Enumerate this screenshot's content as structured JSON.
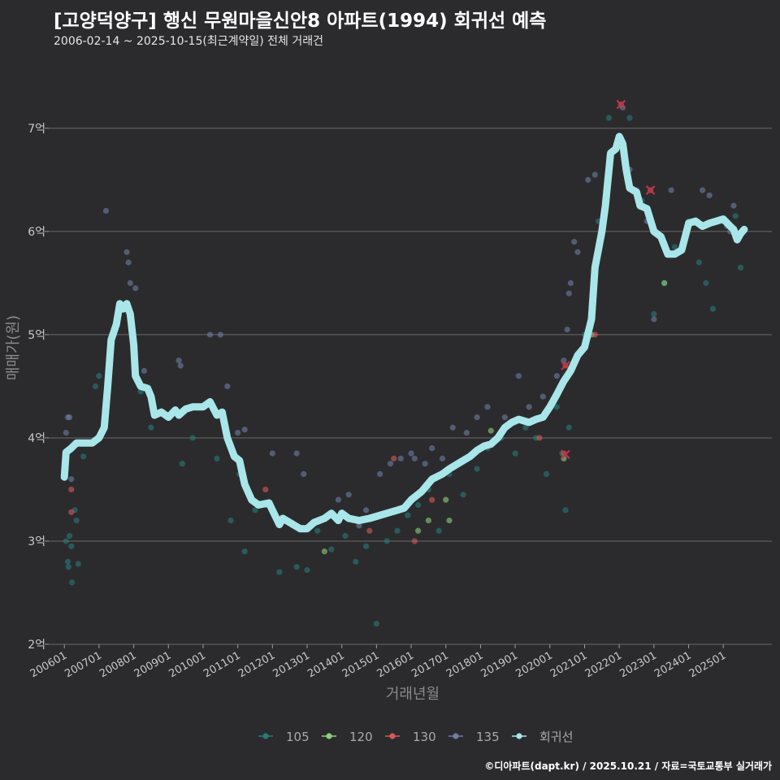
{
  "title": "[고양덕양구] 행신 무원마을신안8 아파트(1994) 회귀선 예측",
  "subtitle": "2006-02-14 ~ 2025-10-15(최근계약일) 전체 거래건",
  "caption": "©디아파트(dapt.kr) / 2025.10.21 / 자료=국토교통부 실거래가",
  "chart_data": {
    "type": "scatter",
    "xlabel": "거래년월",
    "ylabel": "매매가(원)",
    "y_unit": "억",
    "ylim": [
      2,
      7.55
    ],
    "xlim": [
      2005.55,
      2026.4
    ],
    "y_ticks": [
      2,
      3,
      4,
      5,
      6,
      7
    ],
    "y_tick_labels": [
      "2억",
      "3억",
      "4억",
      "5억",
      "6억",
      "7억"
    ],
    "x_ticks": [
      2006,
      2007,
      2008,
      2009,
      2010,
      2011,
      2012,
      2013,
      2014,
      2015,
      2016,
      2017,
      2018,
      2019,
      2020,
      2021,
      2022,
      2023,
      2024,
      2025
    ],
    "x_tick_labels": [
      "200601",
      "200701",
      "200801",
      "200901",
      "201001",
      "201101",
      "201201",
      "201301",
      "201401",
      "201501",
      "201601",
      "201701",
      "201801",
      "201901",
      "202001",
      "202101",
      "202201",
      "202301",
      "202401",
      "202501"
    ],
    "legend": {
      "position": "bottom",
      "items": [
        {
          "label": "105",
          "color": "#2a7a78"
        },
        {
          "label": "120",
          "color": "#8ed07a"
        },
        {
          "label": "130",
          "color": "#d85a5a"
        },
        {
          "label": "135",
          "color": "#6d7fa3"
        },
        {
          "label": "회귀선",
          "color": "#a8e6ea"
        }
      ]
    },
    "series": [
      {
        "name": "105",
        "color": "#2a7a78",
        "points": [
          [
            2006.05,
            3.0
          ],
          [
            2006.1,
            2.8
          ],
          [
            2006.12,
            2.75
          ],
          [
            2006.15,
            3.05
          ],
          [
            2006.2,
            2.95
          ],
          [
            2006.22,
            2.6
          ],
          [
            2006.3,
            3.3
          ],
          [
            2006.35,
            3.2
          ],
          [
            2006.4,
            2.78
          ],
          [
            2006.55,
            3.82
          ],
          [
            2006.9,
            4.5
          ],
          [
            2007.0,
            4.6
          ],
          [
            2008.2,
            4.45
          ],
          [
            2008.5,
            4.1
          ],
          [
            2009.4,
            3.75
          ],
          [
            2009.7,
            4.0
          ],
          [
            2010.4,
            3.8
          ],
          [
            2010.8,
            3.2
          ],
          [
            2011.05,
            3.65
          ],
          [
            2011.2,
            2.9
          ],
          [
            2011.5,
            3.3
          ],
          [
            2012.2,
            2.7
          ],
          [
            2012.7,
            2.75
          ],
          [
            2013.0,
            2.72
          ],
          [
            2013.3,
            3.1
          ],
          [
            2013.7,
            2.92
          ],
          [
            2014.1,
            3.05
          ],
          [
            2014.4,
            2.8
          ],
          [
            2014.7,
            2.95
          ],
          [
            2015.0,
            2.2
          ],
          [
            2015.3,
            3.0
          ],
          [
            2015.6,
            3.1
          ],
          [
            2015.9,
            3.25
          ],
          [
            2016.2,
            3.35
          ],
          [
            2016.5,
            3.5
          ],
          [
            2016.8,
            3.1
          ],
          [
            2017.1,
            3.65
          ],
          [
            2017.5,
            3.45
          ],
          [
            2017.9,
            3.7
          ],
          [
            2018.2,
            3.9
          ],
          [
            2018.6,
            4.0
          ],
          [
            2019.0,
            3.85
          ],
          [
            2019.3,
            4.1
          ],
          [
            2019.6,
            4.0
          ],
          [
            2019.9,
            3.65
          ],
          [
            2020.2,
            4.3
          ],
          [
            2020.35,
            3.85
          ],
          [
            2020.45,
            3.3
          ],
          [
            2020.55,
            4.1
          ],
          [
            2021.0,
            5.0
          ],
          [
            2021.4,
            6.1
          ],
          [
            2021.7,
            7.1
          ],
          [
            2022.3,
            7.1
          ],
          [
            2022.65,
            6.3
          ],
          [
            2023.0,
            5.2
          ],
          [
            2023.3,
            5.5
          ],
          [
            2023.6,
            5.85
          ],
          [
            2024.0,
            6.1
          ],
          [
            2024.3,
            5.7
          ],
          [
            2024.5,
            5.5
          ],
          [
            2024.7,
            5.25
          ],
          [
            2025.1,
            6.05
          ],
          [
            2025.35,
            6.15
          ],
          [
            2025.5,
            5.65
          ]
        ]
      },
      {
        "name": "120",
        "color": "#8ed07a",
        "points": [
          [
            2013.5,
            2.9
          ],
          [
            2016.2,
            3.1
          ],
          [
            2016.5,
            3.2
          ],
          [
            2017.0,
            3.4
          ],
          [
            2017.1,
            3.2
          ],
          [
            2018.3,
            4.07
          ],
          [
            2020.4,
            3.8
          ],
          [
            2021.2,
            5.0
          ],
          [
            2023.3,
            5.5
          ]
        ]
      },
      {
        "name": "130",
        "color": "#d85a5a",
        "points": [
          [
            2006.2,
            3.5
          ],
          [
            2006.2,
            3.28
          ],
          [
            2011.8,
            3.5
          ],
          [
            2014.8,
            3.1
          ],
          [
            2015.5,
            3.8
          ],
          [
            2016.1,
            3.0
          ],
          [
            2016.6,
            3.4
          ],
          [
            2019.7,
            4.0
          ],
          [
            2020.4,
            3.85
          ],
          [
            2020.45,
            4.7
          ],
          [
            2021.3,
            5.0
          ],
          [
            2022.05,
            7.23
          ],
          [
            2022.9,
            6.4
          ]
        ]
      },
      {
        "name": "135",
        "color": "#6d7fa3",
        "points": [
          [
            2006.05,
            4.05
          ],
          [
            2006.1,
            4.2
          ],
          [
            2006.15,
            4.2
          ],
          [
            2006.2,
            3.6
          ],
          [
            2007.2,
            6.2
          ],
          [
            2007.8,
            5.8
          ],
          [
            2007.85,
            5.7
          ],
          [
            2007.9,
            5.5
          ],
          [
            2008.05,
            5.45
          ],
          [
            2007.4,
            5.0
          ],
          [
            2008.3,
            4.65
          ],
          [
            2009.3,
            4.75
          ],
          [
            2009.35,
            4.7
          ],
          [
            2010.2,
            5.0
          ],
          [
            2010.5,
            5.0
          ],
          [
            2010.7,
            4.5
          ],
          [
            2011.0,
            4.05
          ],
          [
            2011.2,
            4.08
          ],
          [
            2012.0,
            3.85
          ],
          [
            2012.7,
            3.85
          ],
          [
            2012.9,
            3.65
          ],
          [
            2013.9,
            3.4
          ],
          [
            2014.2,
            3.45
          ],
          [
            2014.5,
            3.15
          ],
          [
            2014.7,
            3.3
          ],
          [
            2015.1,
            3.65
          ],
          [
            2015.4,
            3.75
          ],
          [
            2015.7,
            3.8
          ],
          [
            2016.0,
            3.85
          ],
          [
            2016.1,
            3.8
          ],
          [
            2016.4,
            3.75
          ],
          [
            2016.6,
            3.9
          ],
          [
            2016.9,
            3.8
          ],
          [
            2017.2,
            4.1
          ],
          [
            2017.6,
            4.05
          ],
          [
            2017.9,
            4.2
          ],
          [
            2018.2,
            4.3
          ],
          [
            2018.7,
            4.2
          ],
          [
            2019.1,
            4.6
          ],
          [
            2019.4,
            4.3
          ],
          [
            2019.8,
            4.4
          ],
          [
            2020.2,
            4.6
          ],
          [
            2020.4,
            4.75
          ],
          [
            2020.5,
            5.05
          ],
          [
            2020.55,
            5.4
          ],
          [
            2020.6,
            5.5
          ],
          [
            2020.7,
            5.9
          ],
          [
            2020.8,
            5.8
          ],
          [
            2021.1,
            6.5
          ],
          [
            2021.3,
            6.55
          ],
          [
            2022.1,
            7.2
          ],
          [
            2022.3,
            6.6
          ],
          [
            2022.5,
            6.4
          ],
          [
            2022.8,
            6.1
          ],
          [
            2022.95,
            6.05
          ],
          [
            2023.0,
            5.15
          ],
          [
            2023.5,
            6.4
          ],
          [
            2024.0,
            6.05
          ],
          [
            2024.4,
            6.4
          ],
          [
            2024.6,
            6.35
          ],
          [
            2025.0,
            6.1
          ],
          [
            2025.2,
            6.0
          ],
          [
            2025.3,
            6.25
          ]
        ]
      }
    ],
    "markers_x": [
      {
        "label": "130",
        "x": 2020.45,
        "y": 3.84
      },
      {
        "label": "130",
        "x": 2020.45,
        "y": 4.7
      },
      {
        "label": "130",
        "x": 2022.05,
        "y": 7.23
      },
      {
        "label": "130",
        "x": 2022.9,
        "y": 6.4
      }
    ],
    "regression": {
      "name": "회귀선",
      "color": "#a8e6ea",
      "points": [
        [
          2006.0,
          3.62
        ],
        [
          2006.05,
          3.86
        ],
        [
          2006.2,
          3.9
        ],
        [
          2006.35,
          3.95
        ],
        [
          2006.8,
          3.95
        ],
        [
          2007.0,
          4.0
        ],
        [
          2007.15,
          4.1
        ],
        [
          2007.25,
          4.5
        ],
        [
          2007.35,
          4.95
        ],
        [
          2007.5,
          5.1
        ],
        [
          2007.6,
          5.3
        ],
        [
          2007.7,
          5.25
        ],
        [
          2007.8,
          5.3
        ],
        [
          2007.9,
          5.2
        ],
        [
          2008.0,
          4.9
        ],
        [
          2008.05,
          4.6
        ],
        [
          2008.2,
          4.5
        ],
        [
          2008.4,
          4.48
        ],
        [
          2008.5,
          4.4
        ],
        [
          2008.6,
          4.22
        ],
        [
          2008.8,
          4.25
        ],
        [
          2009.0,
          4.2
        ],
        [
          2009.2,
          4.27
        ],
        [
          2009.3,
          4.22
        ],
        [
          2009.5,
          4.28
        ],
        [
          2009.7,
          4.3
        ],
        [
          2010.0,
          4.3
        ],
        [
          2010.2,
          4.35
        ],
        [
          2010.4,
          4.22
        ],
        [
          2010.55,
          4.25
        ],
        [
          2010.7,
          4.0
        ],
        [
          2010.9,
          3.82
        ],
        [
          2011.05,
          3.78
        ],
        [
          2011.2,
          3.55
        ],
        [
          2011.4,
          3.4
        ],
        [
          2011.6,
          3.35
        ],
        [
          2011.9,
          3.37
        ],
        [
          2012.0,
          3.3
        ],
        [
          2012.2,
          3.16
        ],
        [
          2012.3,
          3.22
        ],
        [
          2012.5,
          3.18
        ],
        [
          2012.8,
          3.12
        ],
        [
          2013.0,
          3.12
        ],
        [
          2013.2,
          3.18
        ],
        [
          2013.5,
          3.22
        ],
        [
          2013.7,
          3.27
        ],
        [
          2013.9,
          3.2
        ],
        [
          2014.0,
          3.27
        ],
        [
          2014.2,
          3.22
        ],
        [
          2014.5,
          3.2
        ],
        [
          2014.8,
          3.22
        ],
        [
          2015.0,
          3.24
        ],
        [
          2015.3,
          3.27
        ],
        [
          2015.6,
          3.3
        ],
        [
          2015.8,
          3.32
        ],
        [
          2016.0,
          3.4
        ],
        [
          2016.3,
          3.48
        ],
        [
          2016.6,
          3.6
        ],
        [
          2016.9,
          3.65
        ],
        [
          2017.1,
          3.7
        ],
        [
          2017.4,
          3.76
        ],
        [
          2017.7,
          3.82
        ],
        [
          2017.9,
          3.88
        ],
        [
          2018.1,
          3.92
        ],
        [
          2018.3,
          3.94
        ],
        [
          2018.5,
          4.0
        ],
        [
          2018.7,
          4.1
        ],
        [
          2018.9,
          4.15
        ],
        [
          2019.1,
          4.18
        ],
        [
          2019.4,
          4.15
        ],
        [
          2019.6,
          4.18
        ],
        [
          2019.8,
          4.2
        ],
        [
          2020.0,
          4.3
        ],
        [
          2020.2,
          4.42
        ],
        [
          2020.4,
          4.55
        ],
        [
          2020.6,
          4.65
        ],
        [
          2020.8,
          4.8
        ],
        [
          2021.0,
          4.88
        ],
        [
          2021.2,
          5.15
        ],
        [
          2021.3,
          5.65
        ],
        [
          2021.5,
          6.0
        ],
        [
          2021.6,
          6.25
        ],
        [
          2021.75,
          6.76
        ],
        [
          2021.9,
          6.8
        ],
        [
          2022.0,
          6.92
        ],
        [
          2022.1,
          6.85
        ],
        [
          2022.2,
          6.6
        ],
        [
          2022.3,
          6.42
        ],
        [
          2022.5,
          6.38
        ],
        [
          2022.6,
          6.25
        ],
        [
          2022.8,
          6.22
        ],
        [
          2023.0,
          6.0
        ],
        [
          2023.2,
          5.95
        ],
        [
          2023.4,
          5.78
        ],
        [
          2023.6,
          5.78
        ],
        [
          2023.8,
          5.82
        ],
        [
          2024.0,
          6.08
        ],
        [
          2024.2,
          6.1
        ],
        [
          2024.4,
          6.05
        ],
        [
          2024.6,
          6.08
        ],
        [
          2024.8,
          6.1
        ],
        [
          2025.0,
          6.12
        ],
        [
          2025.2,
          6.05
        ],
        [
          2025.3,
          6.02
        ],
        [
          2025.4,
          5.92
        ],
        [
          2025.5,
          5.98
        ],
        [
          2025.6,
          6.02
        ]
      ]
    }
  }
}
